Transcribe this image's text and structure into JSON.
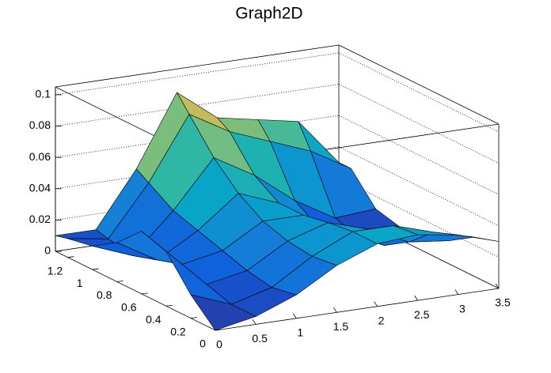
{
  "chart_data": {
    "type": "surface",
    "title": "Graph2D",
    "x": [
      0,
      0.5,
      1,
      1.5,
      2,
      2.5,
      3,
      3.5
    ],
    "y": [
      0,
      0.2,
      0.4,
      0.6,
      0.8,
      1,
      1.2,
      1.3
    ],
    "z": [
      [
        0.0,
        0.005,
        0.015,
        0.03,
        0.04,
        0.042,
        0.038,
        0.03
      ],
      [
        0.015,
        0.005,
        0.012,
        0.028,
        0.04,
        0.04,
        0.032,
        0.025
      ],
      [
        0.035,
        0.01,
        0.015,
        0.03,
        0.038,
        0.03,
        0.018,
        0.015
      ],
      [
        0.04,
        0.015,
        0.02,
        0.035,
        0.035,
        0.02,
        0.008,
        0.01
      ],
      [
        0.025,
        0.01,
        0.025,
        0.045,
        0.035,
        0.015,
        0.005,
        0.008
      ],
      [
        0.015,
        0.005,
        0.03,
        0.06,
        0.045,
        0.025,
        0.01,
        0.012
      ],
      [
        0.012,
        0.008,
        0.04,
        0.08,
        0.065,
        0.055,
        0.045,
        0.03
      ],
      [
        0.01,
        0.01,
        0.045,
        0.09,
        0.07,
        0.065,
        0.06,
        0.03
      ]
    ],
    "xlim": [
      0,
      3.5
    ],
    "ylim": [
      0,
      1.3
    ],
    "zlim": [
      0,
      0.105
    ],
    "xticks": [
      0,
      0.5,
      1,
      1.5,
      2,
      2.5,
      3,
      3.5
    ],
    "yticks": [
      0,
      0.2,
      0.4,
      0.6,
      0.8,
      1,
      1.2
    ],
    "zticks": [
      0,
      0.02,
      0.04,
      0.06,
      0.08,
      0.1
    ],
    "grid": true,
    "palette": [
      "#352a87",
      "#0f5cdd",
      "#1481d6",
      "#06a4ca",
      "#2eb7a4",
      "#87bf77",
      "#d1bb59",
      "#fec832",
      "#f9fb0e"
    ]
  }
}
